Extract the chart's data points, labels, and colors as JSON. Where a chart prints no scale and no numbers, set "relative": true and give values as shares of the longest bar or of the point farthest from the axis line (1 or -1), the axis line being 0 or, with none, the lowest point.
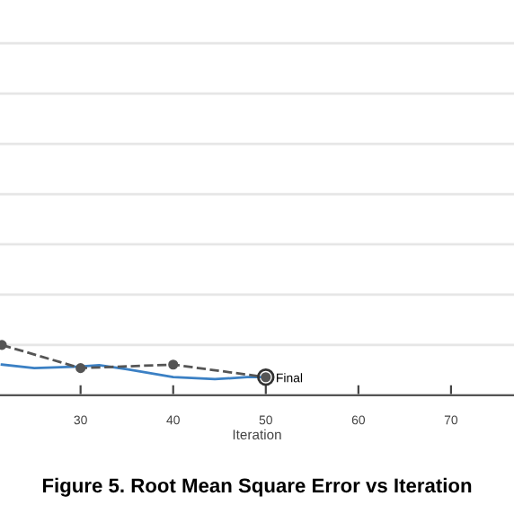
{
  "chart_data": {
    "type": "line",
    "relative": true,
    "xlabel": "Iteration",
    "title": "Figure 5. Root Mean Square Error vs Iteration",
    "xlim": [
      21.3,
      76.8
    ],
    "xticks": [
      30,
      40,
      50,
      60,
      70
    ],
    "grid": "y",
    "legend": false,
    "series": [
      {
        "color": "#3b80c4",
        "line_style": "solid",
        "marker": "none",
        "x": [
          21.5,
          25,
          30,
          32,
          35,
          40,
          44.5,
          48,
          50
        ],
        "values": [
          0.61,
          0.54,
          0.57,
          0.6,
          0.52,
          0.36,
          0.32,
          0.36,
          0.36
        ]
      },
      {
        "color": "#555555",
        "line_style": "dashed",
        "marker": "circle",
        "x": [
          21.5,
          30,
          40,
          50
        ],
        "values": [
          1.0,
          0.54,
          0.61,
          0.36
        ]
      }
    ],
    "annotations": [
      {
        "text": "Final",
        "x": 50,
        "y": 0.36
      }
    ]
  }
}
